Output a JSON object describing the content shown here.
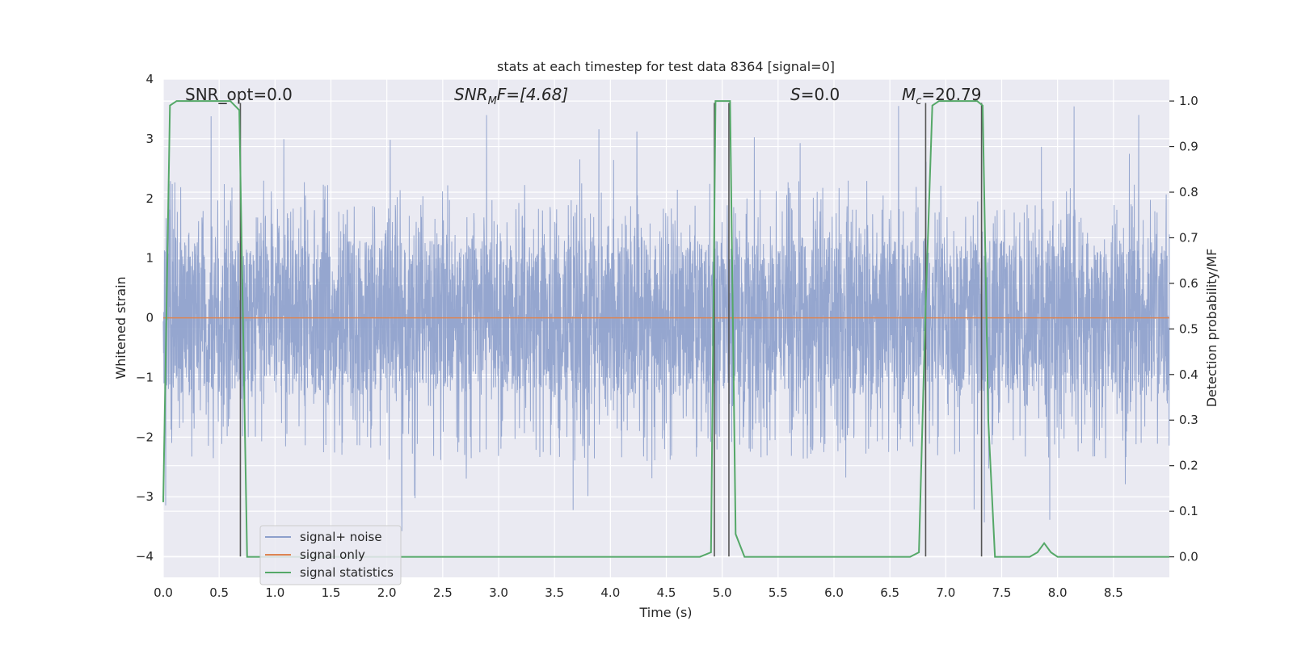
{
  "chart_data": {
    "type": "line",
    "title": "stats at each timestep for test data 8364 [signal=0]",
    "xlabel": "Time (s)",
    "ylabel_left": "Whitened strain",
    "ylabel_right": "Detection probability/MF",
    "xlim": [
      0.0,
      9.0
    ],
    "ylim_left": [
      -4.35,
      4.0
    ],
    "ylim_right": [
      -0.045,
      1.048
    ],
    "x_ticks": [
      0.0,
      0.5,
      1.0,
      1.5,
      2.0,
      2.5,
      3.0,
      3.5,
      4.0,
      4.5,
      5.0,
      5.5,
      6.0,
      6.5,
      7.0,
      7.5,
      8.0,
      8.5
    ],
    "x_tick_labels": [
      "0.0",
      "0.5",
      "1.0",
      "1.5",
      "2.0",
      "2.5",
      "3.0",
      "3.5",
      "4.0",
      "4.5",
      "5.0",
      "5.5",
      "6.0",
      "6.5",
      "7.0",
      "7.5",
      "8.0",
      "8.5"
    ],
    "y_left_ticks": [
      4,
      3,
      2,
      1,
      0,
      -1,
      -2,
      -3,
      -4
    ],
    "y_left_tick_labels": [
      "4",
      "3",
      "2",
      "1",
      "0",
      "−1",
      "−2",
      "−3",
      "−4"
    ],
    "y_right_ticks": [
      1.0,
      0.9,
      0.8,
      0.7,
      0.6,
      0.5,
      0.4,
      0.3,
      0.2,
      0.1,
      0.0
    ],
    "y_right_tick_labels": [
      "1.0",
      "0.9",
      "0.8",
      "0.7",
      "0.6",
      "0.5",
      "0.4",
      "0.3",
      "0.2",
      "0.1",
      "0.0"
    ],
    "grid": true,
    "legend_position": "lower-left",
    "colors": {
      "background": "#eaeaf2",
      "grid": "#ffffff",
      "noise": "#8c9fcb",
      "signal": "#dd8452",
      "stats": "#55a868",
      "vlines": "#555555"
    },
    "annotations": {
      "snr_opt": "SNR_opt=0.0",
      "snr_mf_base": "SNR",
      "snr_mf_sub": "M",
      "snr_mf_rest": "F=[4.68]",
      "s_base": "S",
      "s_rest": "=0.0",
      "mc_base": "M",
      "mc_sub": "c",
      "mc_rest": "=20.79"
    },
    "series": [
      {
        "name": "signal+ noise",
        "axis": "left",
        "style": "dense noise trace",
        "band": [
          -1.3,
          1.3
        ],
        "peak_range": [
          -4.0,
          3.6
        ],
        "samples": 4500,
        "seed": 8364
      },
      {
        "name": "signal only",
        "axis": "left",
        "x": [
          0.0,
          9.0
        ],
        "y": [
          0.0,
          0.0
        ]
      },
      {
        "name": "signal statistics",
        "axis": "right",
        "x": [
          0.0,
          0.06,
          0.12,
          0.3,
          0.6,
          0.68,
          0.75,
          0.8,
          4.8,
          4.9,
          4.94,
          5.0,
          5.07,
          5.12,
          5.2,
          6.68,
          6.76,
          6.82,
          6.88,
          6.94,
          7.28,
          7.33,
          7.38,
          7.44,
          7.5,
          7.75,
          7.82,
          7.88,
          7.94,
          8.0,
          9.0
        ],
        "y": [
          0.12,
          0.99,
          1.0,
          1.0,
          1.0,
          0.98,
          0.0,
          0.0,
          0.0,
          0.01,
          1.0,
          1.0,
          1.0,
          0.05,
          0.0,
          0.0,
          0.01,
          0.55,
          0.99,
          1.0,
          1.0,
          0.99,
          0.3,
          0.0,
          0.0,
          0.0,
          0.01,
          0.03,
          0.01,
          0.0,
          0.0
        ]
      }
    ],
    "vertical_lines": {
      "x": [
        0.69,
        4.93,
        5.06,
        6.82,
        7.32
      ],
      "y_left": [
        -4.0,
        3.6
      ]
    }
  }
}
